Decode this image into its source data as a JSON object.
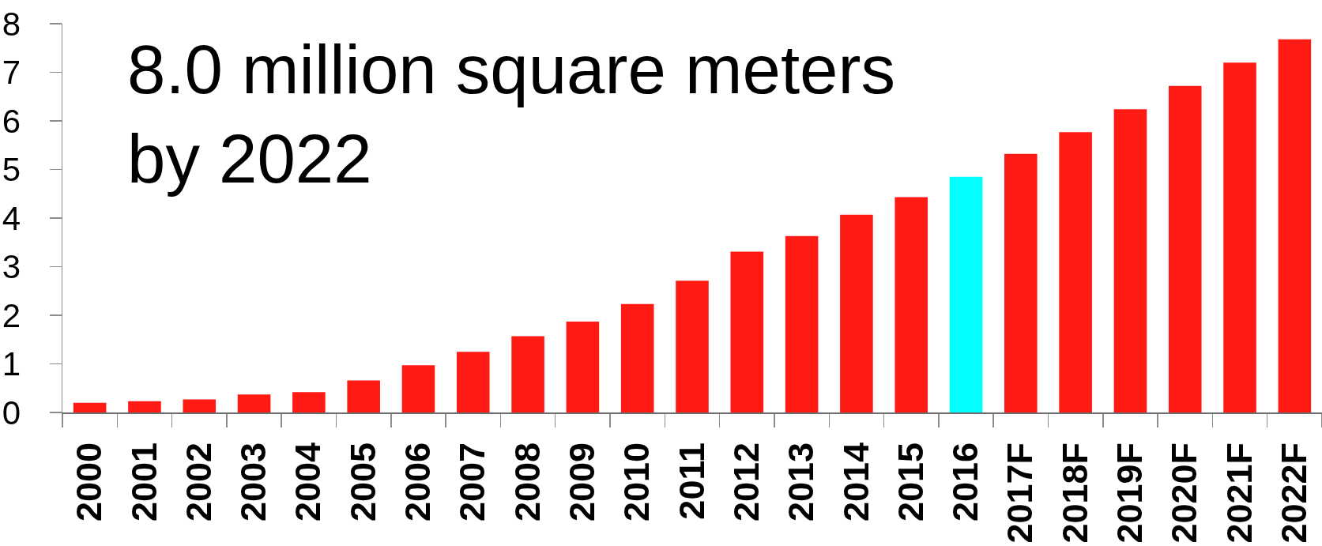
{
  "chart_data": {
    "type": "bar",
    "title": "8.0 million square meters\nby 2022",
    "categories": [
      "2000",
      "2001",
      "2002",
      "2003",
      "2004",
      "2005",
      "2006",
      "2007",
      "2008",
      "2009",
      "2010",
      "2011",
      "2012",
      "2013",
      "2014",
      "2015",
      "2016",
      "2017F",
      "2018F",
      "2019F",
      "2020F",
      "2021F",
      "2022F"
    ],
    "values": [
      0.2,
      0.23,
      0.27,
      0.37,
      0.42,
      0.66,
      0.97,
      1.25,
      1.57,
      1.87,
      2.23,
      2.71,
      3.31,
      3.63,
      4.07,
      4.43,
      4.85,
      5.32,
      5.77,
      6.24,
      6.72,
      7.2,
      7.68
    ],
    "colors": [
      "#ff1a14",
      "#ff1a14",
      "#ff1a14",
      "#ff1a14",
      "#ff1a14",
      "#ff1a14",
      "#ff1a14",
      "#ff1a14",
      "#ff1a14",
      "#ff1a14",
      "#ff1a14",
      "#ff1a14",
      "#ff1a14",
      "#ff1a14",
      "#ff1a14",
      "#ff1a14",
      "#00ffff",
      "#ff1a14",
      "#ff1a14",
      "#ff1a14",
      "#ff1a14",
      "#ff1a14",
      "#ff1a14"
    ],
    "ylim": [
      0,
      8
    ],
    "yticks": [
      0,
      1,
      2,
      3,
      4,
      5,
      6,
      7,
      8
    ]
  }
}
